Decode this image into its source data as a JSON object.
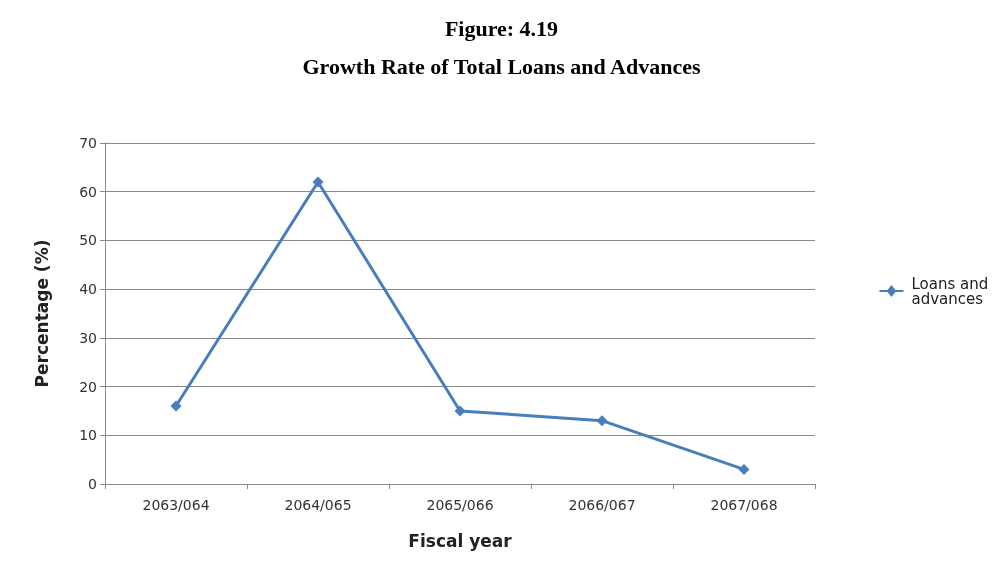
{
  "chart_data": {
    "type": "line",
    "title": "Figure: 4.19",
    "subtitle": "Growth Rate of Total Loans and Advances",
    "xlabel": "Fiscal year",
    "ylabel": "Percentage (%)",
    "categories": [
      "2063/064",
      "2064/065",
      "2065/066",
      "2066/067",
      "2067/068"
    ],
    "series": [
      {
        "name": "Loans and advances",
        "color": "#4a7ebb",
        "values": [
          16,
          62,
          15,
          13,
          3
        ]
      }
    ],
    "ylim": [
      0,
      70
    ],
    "yticks": [
      0,
      10,
      20,
      30,
      40,
      50,
      60,
      70
    ],
    "grid": "y",
    "legend": "right",
    "marker": "diamond",
    "line_style": "solid"
  }
}
